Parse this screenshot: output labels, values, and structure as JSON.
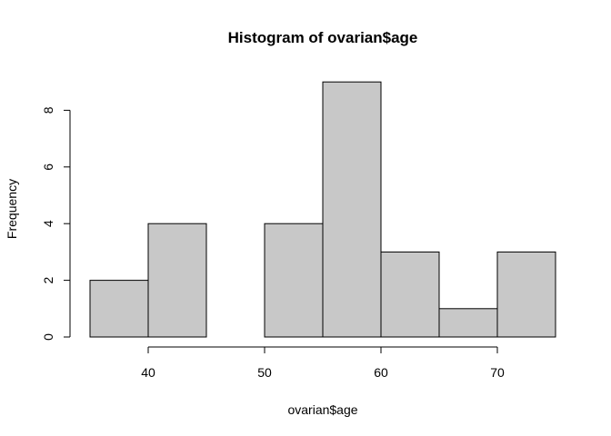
{
  "chart_data": {
    "type": "bar",
    "title": "Histogram of ovarian$age",
    "xlabel": "ovarian$age",
    "ylabel": "Frequency",
    "bins": [
      {
        "start": 35,
        "end": 40,
        "count": 2
      },
      {
        "start": 40,
        "end": 45,
        "count": 4
      },
      {
        "start": 45,
        "end": 50,
        "count": 0
      },
      {
        "start": 50,
        "end": 55,
        "count": 4
      },
      {
        "start": 55,
        "end": 60,
        "count": 9
      },
      {
        "start": 60,
        "end": 65,
        "count": 3
      },
      {
        "start": 65,
        "end": 70,
        "count": 1
      },
      {
        "start": 70,
        "end": 75,
        "count": 3
      }
    ],
    "xticks": [
      40,
      50,
      60,
      70
    ],
    "yticks": [
      0,
      2,
      4,
      6,
      8
    ],
    "xlim": [
      35,
      75
    ],
    "ylim": [
      0,
      9
    ],
    "grid": false,
    "bar_color": "#c8c8c8",
    "edge_color": "#000000"
  }
}
